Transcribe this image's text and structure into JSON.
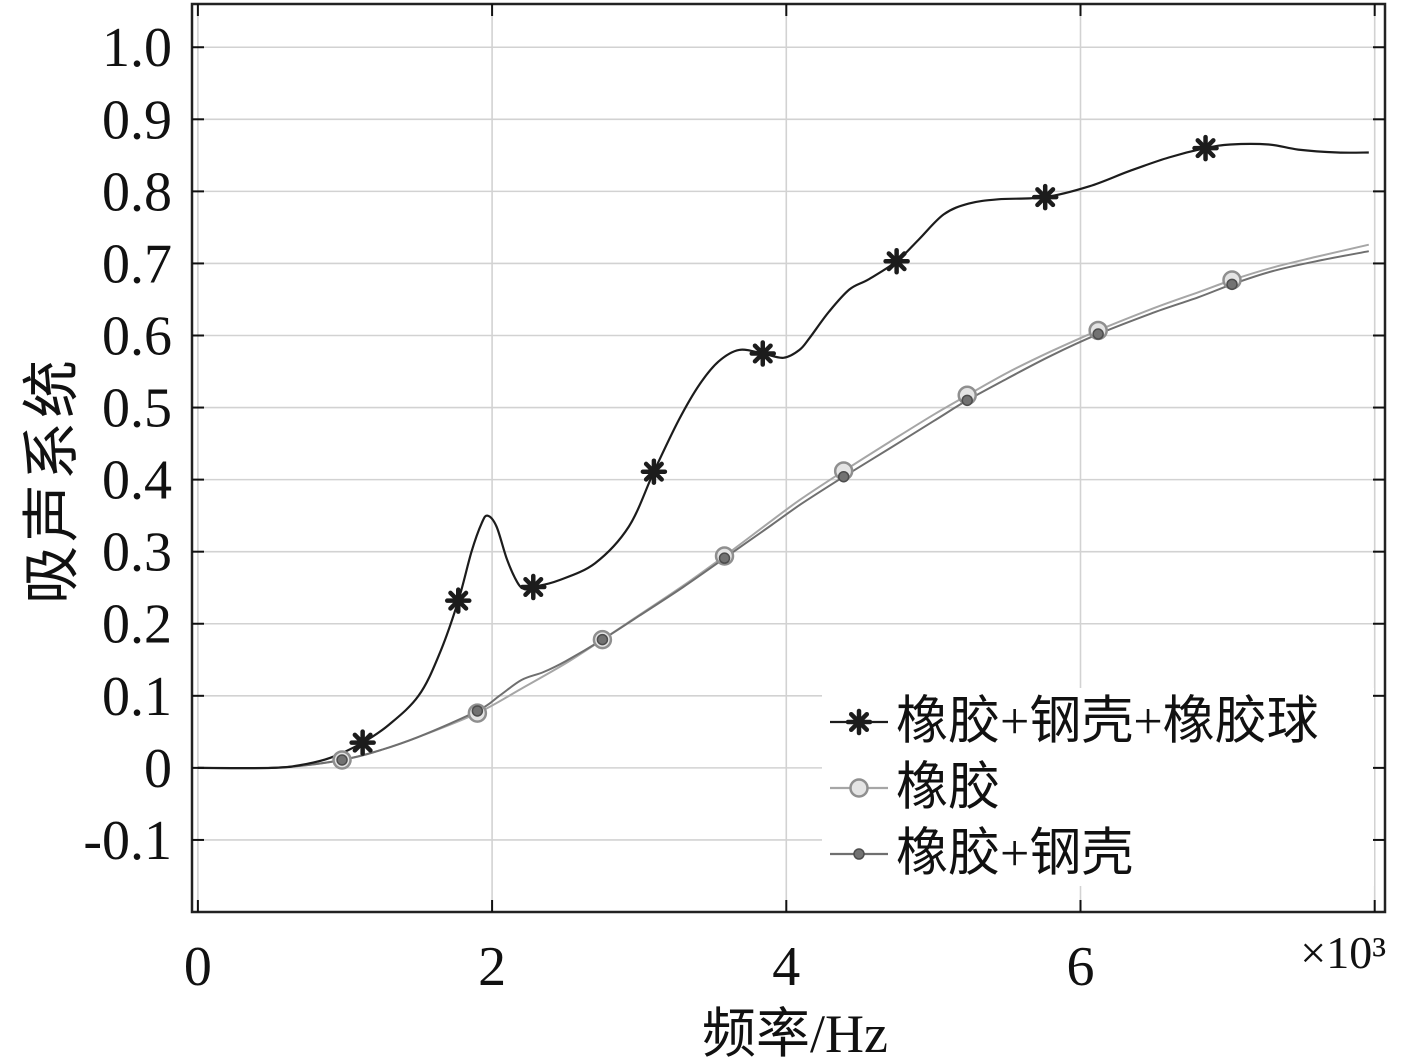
{
  "chart_data": {
    "type": "line",
    "xlabel": "频率/Hz",
    "ylabel": "吸声系统",
    "x_multiplier_label": "×10³",
    "xlim": [
      -0.04,
      8.07
    ],
    "ylim": [
      -0.2,
      1.06
    ],
    "grid": true,
    "legend_position": "bottom-right",
    "x_ticks": [
      {
        "value": 0,
        "label": "0"
      },
      {
        "value": 2,
        "label": "2"
      },
      {
        "value": 4,
        "label": "4"
      },
      {
        "value": 6,
        "label": "6"
      }
    ],
    "x_tick_marks": [
      0,
      2,
      4,
      6,
      8
    ],
    "y_ticks": [
      {
        "value": 1.0,
        "label": "1.0"
      },
      {
        "value": 0.9,
        "label": "0.9"
      },
      {
        "value": 0.8,
        "label": "0.8"
      },
      {
        "value": 0.7,
        "label": "0.7"
      },
      {
        "value": 0.6,
        "label": "0.6"
      },
      {
        "value": 0.5,
        "label": "0.5"
      },
      {
        "value": 0.4,
        "label": "0.4"
      },
      {
        "value": 0.3,
        "label": "0.3"
      },
      {
        "value": 0.2,
        "label": "0.2"
      },
      {
        "value": 0.1,
        "label": "0.1"
      },
      {
        "value": 0,
        "label": "0"
      },
      {
        "value": -0.1,
        "label": "-0.1"
      }
    ],
    "series": [
      {
        "name": "橡胶+钢壳+橡胶球",
        "line_color": "#1c1c1c",
        "marker": "asterisk",
        "marker_fill": "#1c1c1c",
        "marker_edge": "#1c1c1c",
        "x": [
          0,
          0.5,
          0.7,
          0.9,
          1.12,
          1.3,
          1.5,
          1.64,
          1.77,
          1.86,
          1.93,
          1.97,
          2.03,
          2.1,
          2.17,
          2.22,
          2.28,
          2.45,
          2.7,
          2.93,
          3.1,
          3.27,
          3.41,
          3.54,
          3.68,
          3.84,
          3.98,
          4.09,
          4.16,
          4.29,
          4.43,
          4.56,
          4.75,
          4.9,
          5.07,
          5.24,
          5.44,
          5.76,
          6.06,
          6.33,
          6.6,
          6.85,
          7.02,
          7.28,
          7.48,
          7.75,
          7.96
        ],
        "y": [
          0,
          0,
          0.004,
          0.014,
          0.035,
          0.06,
          0.1,
          0.157,
          0.232,
          0.3,
          0.34,
          0.35,
          0.335,
          0.29,
          0.258,
          0.248,
          0.251,
          0.26,
          0.284,
          0.335,
          0.411,
          0.483,
          0.532,
          0.564,
          0.58,
          0.575,
          0.569,
          0.58,
          0.597,
          0.633,
          0.664,
          0.678,
          0.703,
          0.733,
          0.768,
          0.783,
          0.789,
          0.792,
          0.807,
          0.828,
          0.847,
          0.86,
          0.865,
          0.865,
          0.858,
          0.854,
          0.854
        ],
        "marker_x": [
          1.12,
          1.77,
          2.28,
          3.1,
          3.84,
          4.75,
          5.76,
          6.85
        ]
      },
      {
        "name": "橡胶",
        "line_color": "#a6a6a6",
        "marker": "circle",
        "marker_fill": "#e4e4e4",
        "marker_edge": "#8f8f8f",
        "x": [
          0,
          0.5,
          0.75,
          0.98,
          1.2,
          1.5,
          1.9,
          2.2,
          2.5,
          2.75,
          3.0,
          3.3,
          3.58,
          3.9,
          4.1,
          4.39,
          4.7,
          5.0,
          5.23,
          5.5,
          5.8,
          6.12,
          6.5,
          6.8,
          7.03,
          7.3,
          7.6,
          7.96
        ],
        "y": [
          0,
          0,
          0.004,
          0.011,
          0.022,
          0.043,
          0.076,
          0.11,
          0.145,
          0.178,
          0.212,
          0.253,
          0.294,
          0.343,
          0.373,
          0.412,
          0.452,
          0.49,
          0.517,
          0.548,
          0.578,
          0.607,
          0.638,
          0.66,
          0.677,
          0.694,
          0.709,
          0.726
        ],
        "marker_x": [
          0.98,
          1.9,
          2.75,
          3.58,
          4.39,
          5.23,
          6.12,
          7.03
        ]
      },
      {
        "name": "橡胶+钢壳",
        "line_color": "#6f6f6f",
        "marker": "circle-small",
        "marker_fill": "#727272",
        "marker_edge": "#4d4d4d",
        "x": [
          0,
          0.5,
          0.75,
          0.98,
          1.2,
          1.5,
          1.9,
          2.05,
          2.2,
          2.35,
          2.5,
          2.75,
          3.0,
          3.3,
          3.58,
          3.9,
          4.1,
          4.39,
          4.7,
          5.0,
          5.23,
          5.5,
          5.8,
          6.12,
          6.5,
          6.8,
          7.03,
          7.3,
          7.6,
          7.96
        ],
        "y": [
          0,
          0,
          0.004,
          0.011,
          0.022,
          0.043,
          0.079,
          0.1,
          0.122,
          0.133,
          0.148,
          0.178,
          0.211,
          0.251,
          0.291,
          0.337,
          0.366,
          0.404,
          0.443,
          0.481,
          0.51,
          0.54,
          0.572,
          0.602,
          0.632,
          0.653,
          0.671,
          0.689,
          0.703,
          0.717
        ],
        "marker_x": [
          0.98,
          1.9,
          2.75,
          3.58,
          4.39,
          5.23,
          6.12,
          7.03
        ]
      }
    ]
  }
}
